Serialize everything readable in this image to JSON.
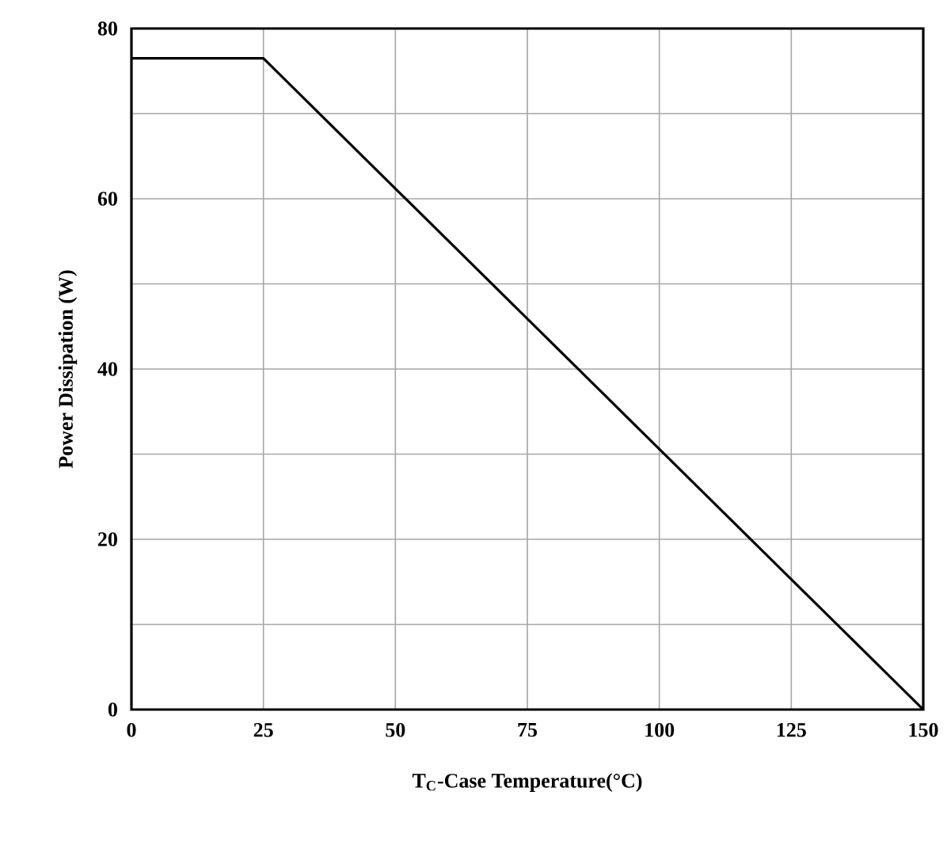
{
  "chart_data": {
    "type": "line",
    "xlabel": "T$_{C}$-Case Temperature(°C)",
    "ylabel": "Power  Dissipation (W)",
    "x": [
      0,
      25,
      150
    ],
    "series": [
      {
        "color": "#000000",
        "values": [
          76.5,
          76.5,
          0
        ]
      }
    ],
    "xlim": [
      0,
      150
    ],
    "xticks": [
      0,
      25,
      50,
      75,
      100,
      125,
      150
    ],
    "ylim": [
      0,
      80
    ],
    "yticks": [
      0,
      {
        "value": 10,
        "label": null
      },
      20,
      {
        "value": 30,
        "label": null
      },
      40,
      {
        "value": 50,
        "label": null
      },
      60,
      {
        "value": 70,
        "label": null
      },
      80
    ],
    "grid": true,
    "marker": "none",
    "line_style": "solid"
  }
}
